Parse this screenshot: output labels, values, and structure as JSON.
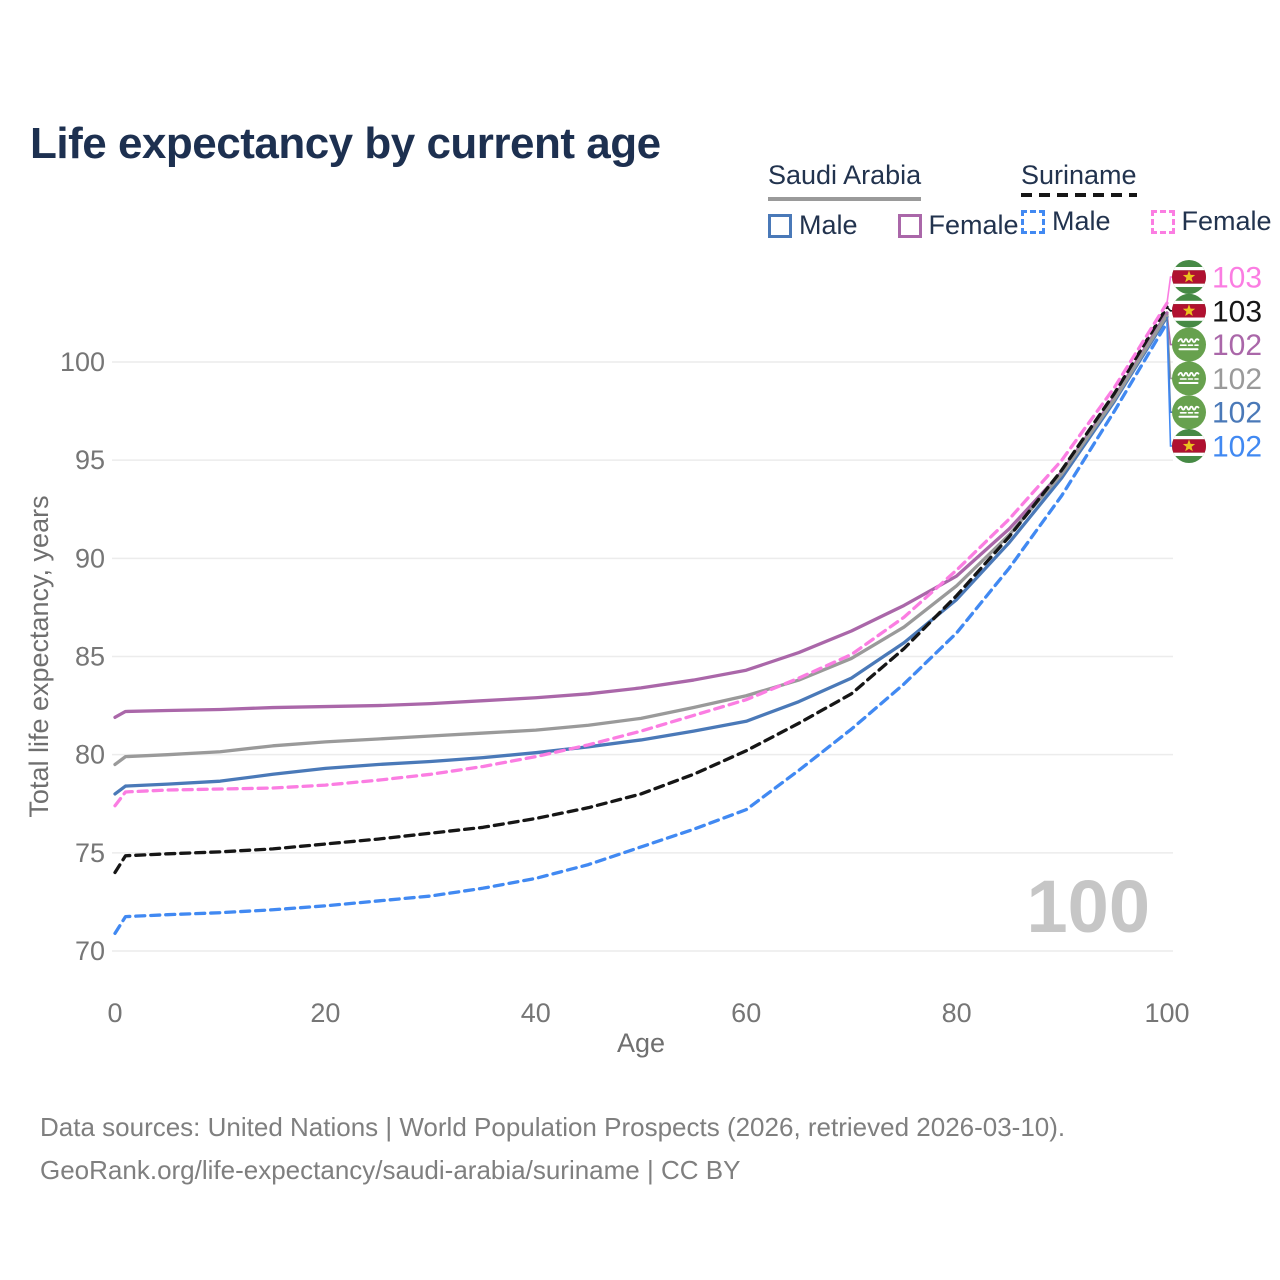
{
  "header": {
    "title": "Life expectancy by current age"
  },
  "legend": {
    "position": "top-right",
    "groups": [
      {
        "name": "Saudi Arabia",
        "underline_style": "solid",
        "underline_color": "#9a9a9a",
        "items": [
          {
            "label": "Male",
            "color": "#4a79b8",
            "line_style": "solid"
          },
          {
            "label": "Female",
            "color": "#aa67a9",
            "line_style": "solid"
          }
        ]
      },
      {
        "name": "Suriname",
        "underline_style": "dashed",
        "underline_color": "#161616",
        "items": [
          {
            "label": "Male",
            "color": "#4189f2",
            "line_style": "dashed"
          },
          {
            "label": "Female",
            "color": "#fb7de2",
            "line_style": "dashed"
          }
        ]
      }
    ]
  },
  "watermark": "100",
  "footer": {
    "line1": "Data sources: United Nations | World Population Prospects (2026, retrieved 2026-03-10).",
    "line2": "GeoRank.org/life-expectancy/saudi-arabia/suriname | CC BY"
  },
  "colors": {
    "title": "#1d3050",
    "axis_text": "#767676",
    "gridline": "#ececec",
    "footer_text": "#7f7f7f",
    "watermark": "#c6c6c6"
  },
  "chart_data": {
    "type": "line",
    "title": "Life expectancy by current age",
    "xlabel": "Age",
    "ylabel": "Total life expectancy, years",
    "xlim": [
      0,
      100
    ],
    "ylim": [
      70,
      104
    ],
    "x_ticks": [
      0,
      20,
      40,
      60,
      80,
      100
    ],
    "y_ticks": [
      70,
      75,
      80,
      85,
      90,
      95,
      100
    ],
    "grid": "horizontal-only",
    "legend_position": "top-right",
    "x": [
      0,
      1,
      5,
      10,
      15,
      20,
      25,
      30,
      35,
      40,
      45,
      50,
      55,
      60,
      65,
      70,
      75,
      80,
      85,
      90,
      95,
      100
    ],
    "series": [
      {
        "id": "saudi-arabia-male",
        "name": "Saudi Arabia — Male",
        "country": "Saudi Arabia",
        "flag": "sa",
        "color": "#4a79b8",
        "dash": "solid",
        "end_label": "102",
        "values": [
          78.0,
          78.4,
          78.5,
          78.65,
          79.0,
          79.3,
          79.5,
          79.65,
          79.85,
          80.1,
          80.4,
          80.75,
          81.2,
          81.7,
          82.7,
          83.9,
          85.7,
          87.9,
          90.8,
          94.1,
          98.0,
          102.3
        ]
      },
      {
        "id": "saudi-arabia-female",
        "name": "Saudi Arabia — Female",
        "country": "Saudi Arabia",
        "flag": "sa",
        "color": "#aa67a9",
        "dash": "solid",
        "end_label": "102",
        "values": [
          81.9,
          82.2,
          82.25,
          82.3,
          82.4,
          82.45,
          82.5,
          82.6,
          82.75,
          82.9,
          83.1,
          83.4,
          83.8,
          84.3,
          85.2,
          86.3,
          87.6,
          89.1,
          91.5,
          94.4,
          98.2,
          102.5
        ]
      },
      {
        "id": "saudi-arabia-total",
        "name": "Saudi Arabia — Total",
        "country": "Saudi Arabia",
        "flag": "sa",
        "color": "#9a9a9a",
        "dash": "solid",
        "end_label": "102",
        "values": [
          79.5,
          79.9,
          80.0,
          80.15,
          80.45,
          80.65,
          80.8,
          80.95,
          81.1,
          81.25,
          81.5,
          81.85,
          82.4,
          83.0,
          83.8,
          84.9,
          86.5,
          88.6,
          91.2,
          94.3,
          98.1,
          102.4
        ]
      },
      {
        "id": "suriname-male",
        "name": "Suriname — Male",
        "country": "Suriname",
        "flag": "sr",
        "color": "#4189f2",
        "dash": "dashed",
        "end_label": "102",
        "values": [
          70.9,
          71.75,
          71.85,
          71.95,
          72.1,
          72.3,
          72.55,
          72.8,
          73.2,
          73.7,
          74.4,
          75.3,
          76.2,
          77.2,
          79.2,
          81.3,
          83.6,
          86.2,
          89.5,
          93.2,
          97.5,
          102.0
        ]
      },
      {
        "id": "suriname-total",
        "name": "Suriname — Total",
        "country": "Suriname",
        "flag": "sr",
        "color": "#161616",
        "dash": "dashed",
        "end_label": "103",
        "values": [
          74.0,
          74.85,
          74.95,
          75.05,
          75.2,
          75.45,
          75.7,
          76.0,
          76.3,
          76.75,
          77.3,
          78.0,
          79.0,
          80.2,
          81.6,
          83.1,
          85.4,
          88.1,
          91.1,
          94.5,
          98.4,
          102.8
        ]
      },
      {
        "id": "suriname-female",
        "name": "Suriname — Female",
        "country": "Suriname",
        "flag": "sr",
        "color": "#fb7de2",
        "dash": "dashed",
        "end_label": "103",
        "values": [
          77.4,
          78.1,
          78.2,
          78.25,
          78.3,
          78.45,
          78.7,
          79.0,
          79.4,
          79.9,
          80.5,
          81.2,
          82.0,
          82.8,
          83.9,
          85.1,
          87.0,
          89.4,
          92.0,
          95.0,
          98.7,
          103.0
        ]
      }
    ]
  }
}
